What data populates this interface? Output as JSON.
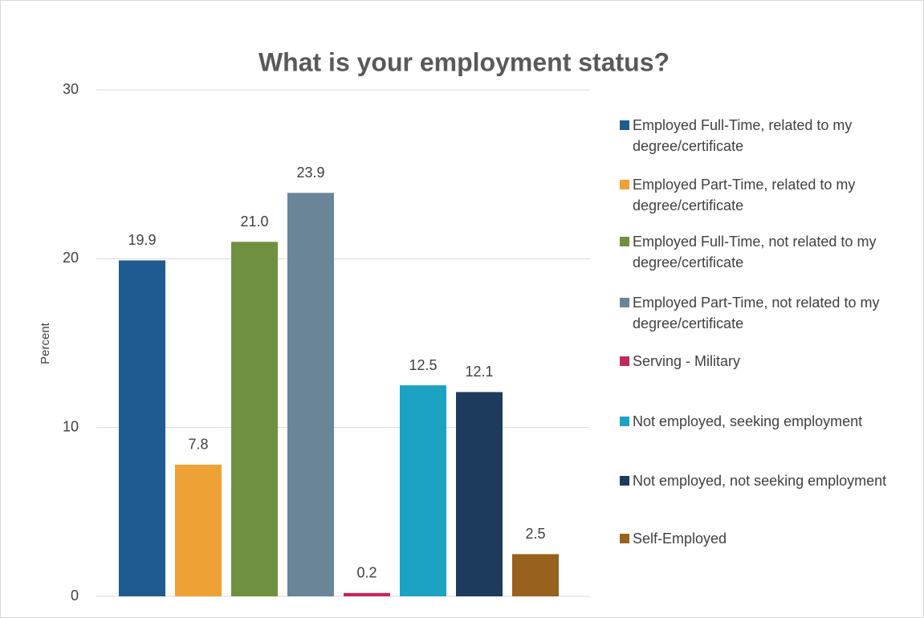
{
  "chart_data": {
    "type": "bar",
    "title": "What is your employment status?",
    "y_label": "Percent",
    "ylim": [
      0,
      30
    ],
    "yticks": [
      0,
      10,
      20,
      30
    ],
    "grid": true,
    "legend": "right",
    "series": [
      {
        "name": "Employed Full-Time, related to my degree/certificate",
        "color": "#1f5b91",
        "values": [
          19.9
        ]
      },
      {
        "name": "Employed Part-Time, related to my degree/certificate",
        "color": "#eea236",
        "values": [
          7.8
        ]
      },
      {
        "name": "Employed Full-Time, not related to my degree/certificate",
        "color": "#6f913f",
        "values": [
          21.0
        ],
        "value_labels": [
          "21.0"
        ]
      },
      {
        "name": "Employed Part-Time, not related to my degree/certificate",
        "color": "#6a8598",
        "values": [
          23.9
        ]
      },
      {
        "name": "Serving - Military",
        "color": "#c3285a",
        "values": [
          0.2
        ]
      },
      {
        "name": "Not employed, seeking employment",
        "color": "#1ca3c4",
        "values": [
          12.5
        ]
      },
      {
        "name": "Not employed, not seeking employment",
        "color": "#1d3b5c",
        "values": [
          12.1
        ]
      },
      {
        "name": "Self-Employed",
        "color": "#98621e",
        "values": [
          2.5
        ]
      }
    ]
  }
}
